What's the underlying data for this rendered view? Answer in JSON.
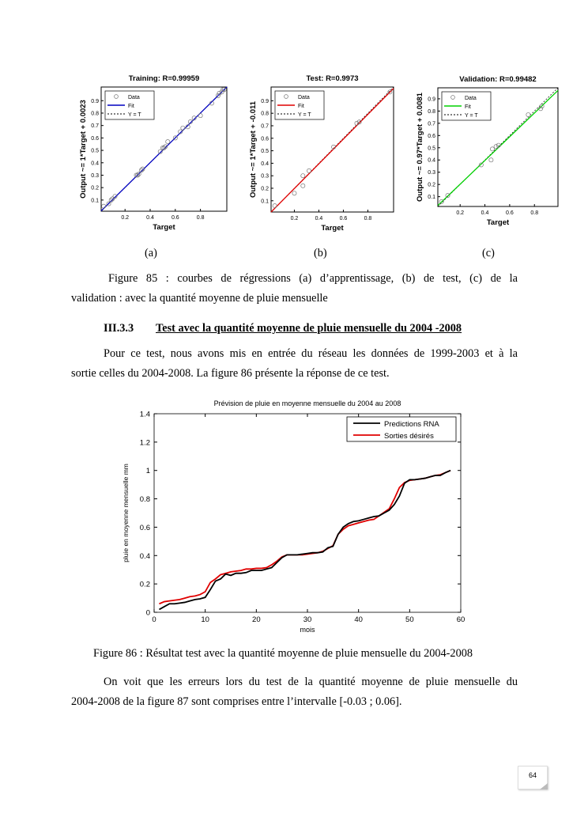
{
  "captions": {
    "a": "(a)",
    "b": "(b)",
    "c": "(c)"
  },
  "figure85_caption": {
    "line1": "Figure 85 : courbes de régressions (a) d’apprentissage, (b) de  test, (c) de la",
    "line2": "validation : avec la quantité moyenne de pluie mensuelle"
  },
  "section": {
    "number": "III.3.3",
    "title": "Test avec la quantité moyenne de pluie mensuelle du 2004 -2008"
  },
  "paragraph1": {
    "line1": "Pour ce test, nous avons mis en entrée du réseau les données de 1999-2003 et à la",
    "line2": "sortie celles du 2004-2008. La figure 86 présente la réponse de ce test."
  },
  "figure86_caption": "Figure 86 : Résultat test avec  la quantité moyenne de pluie mensuelle du 2004-2008",
  "paragraph2": {
    "line1": "On voit que les erreurs lors du test de la quantité moyenne de pluie mensuelle du",
    "line2": "2004-2008 de la figure 87 sont comprises entre l’intervalle [-0.03 ; 0.06]."
  },
  "page_number": "64",
  "chart_data": [
    {
      "type": "scatter",
      "title": "Training: R=0.99959",
      "xlabel": "Target",
      "ylabel": "Output ~= 1*Target + 0.0023",
      "xlim": [
        0.01,
        1.01
      ],
      "ylim": [
        0.01,
        1.01
      ],
      "xticks": [
        "0.2",
        "0.4",
        "0.6",
        "0.8"
      ],
      "yticks": [
        "0.1",
        "0.2",
        "0.3",
        "0.4",
        "0.5",
        "0.6",
        "0.7",
        "0.8",
        "0.9"
      ],
      "fit": {
        "slope": 1,
        "intercept": 0.0023
      },
      "color": "#0000c0",
      "legend": [
        "Data",
        "Fit",
        "Y = T"
      ],
      "points": [
        [
          0.03,
          0.05
        ],
        [
          0.07,
          0.07
        ],
        [
          0.09,
          0.1
        ],
        [
          0.1,
          0.11
        ],
        [
          0.12,
          0.13
        ],
        [
          0.29,
          0.3
        ],
        [
          0.3,
          0.3
        ],
        [
          0.31,
          0.31
        ],
        [
          0.33,
          0.34
        ],
        [
          0.34,
          0.35
        ],
        [
          0.48,
          0.49
        ],
        [
          0.5,
          0.52
        ],
        [
          0.51,
          0.52
        ],
        [
          0.52,
          0.53
        ],
        [
          0.54,
          0.57
        ],
        [
          0.6,
          0.6
        ],
        [
          0.64,
          0.65
        ],
        [
          0.66,
          0.68
        ],
        [
          0.7,
          0.69
        ],
        [
          0.72,
          0.73
        ],
        [
          0.75,
          0.76
        ],
        [
          0.8,
          0.78
        ],
        [
          0.89,
          0.88
        ],
        [
          0.94,
          0.94
        ],
        [
          0.95,
          0.96
        ],
        [
          0.97,
          0.97
        ],
        [
          0.98,
          0.99
        ],
        [
          0.99,
          0.99
        ]
      ]
    },
    {
      "type": "scatter",
      "title": "Test: R=0.9973",
      "xlabel": "Target",
      "ylabel": "Output ~= 1*Target + -0.011",
      "xlim": [
        0.01,
        1.01
      ],
      "ylim": [
        0.01,
        1.01
      ],
      "xticks": [
        "0.2",
        "0.4",
        "0.6",
        "0.8"
      ],
      "yticks": [
        "0.1",
        "0.2",
        "0.3",
        "0.4",
        "0.5",
        "0.6",
        "0.7",
        "0.8",
        "0.9"
      ],
      "fit": {
        "slope": 1,
        "intercept": -0.011
      },
      "color": "#e00000",
      "legend": [
        "Data",
        "Fit",
        "Y = T"
      ],
      "points": [
        [
          0.04,
          0.06
        ],
        [
          0.2,
          0.16
        ],
        [
          0.27,
          0.3
        ],
        [
          0.27,
          0.22
        ],
        [
          0.32,
          0.34
        ],
        [
          0.52,
          0.53
        ],
        [
          0.71,
          0.72
        ],
        [
          0.73,
          0.73
        ],
        [
          0.98,
          0.97
        ]
      ]
    },
    {
      "type": "scatter",
      "title": "Validation: R=0.99482",
      "xlabel": "Target",
      "ylabel": "Output ~= 0.97*Target + 0.0081",
      "xlim": [
        0.02,
        0.99
      ],
      "ylim": [
        0.02,
        0.99
      ],
      "xticks": [
        "0.2",
        "0.4",
        "0.6",
        "0.8"
      ],
      "yticks": [
        "0.1",
        "0.2",
        "0.3",
        "0.4",
        "0.5",
        "0.6",
        "0.7",
        "0.8",
        "0.9"
      ],
      "fit": {
        "slope": 0.97,
        "intercept": 0.0081
      },
      "color": "#00d000",
      "legend": [
        "Data",
        "Fit",
        "Y = T"
      ],
      "points": [
        [
          0.05,
          0.06
        ],
        [
          0.1,
          0.11
        ],
        [
          0.37,
          0.36
        ],
        [
          0.45,
          0.4
        ],
        [
          0.46,
          0.49
        ],
        [
          0.49,
          0.51
        ],
        [
          0.51,
          0.52
        ],
        [
          0.75,
          0.77
        ],
        [
          0.85,
          0.82
        ],
        [
          0.86,
          0.84
        ]
      ]
    },
    {
      "type": "line",
      "title": "Prévision de pluie en moyenne mensuelle du 2004 au 2008",
      "xlabel": "mois",
      "ylabel": "pluie en moyenne mensuelle mm",
      "xlim": [
        0,
        60
      ],
      "ylim": [
        0,
        1.4
      ],
      "xticks": [
        "0",
        "10",
        "20",
        "30",
        "40",
        "50",
        "60"
      ],
      "yticks": [
        "0",
        "0.2",
        "0.4",
        "0.6",
        "0.8",
        "1",
        "1.2",
        "1.4"
      ],
      "legend_position": "top-right",
      "series": [
        {
          "name": "Predictions RNA",
          "color": "#000000",
          "values": [
            0.02,
            0.04,
            0.06,
            0.06,
            0.065,
            0.07,
            0.08,
            0.09,
            0.095,
            0.105,
            0.16,
            0.22,
            0.235,
            0.27,
            0.26,
            0.275,
            0.275,
            0.28,
            0.295,
            0.295,
            0.295,
            0.305,
            0.315,
            0.35,
            0.385,
            0.405,
            0.405,
            0.405,
            0.41,
            0.415,
            0.42,
            0.42,
            0.425,
            0.455,
            0.465,
            0.55,
            0.6,
            0.625,
            0.64,
            0.645,
            0.655,
            0.665,
            0.675,
            0.68,
            0.7,
            0.72,
            0.76,
            0.82,
            0.91,
            0.935,
            0.935,
            0.94,
            0.945,
            0.955,
            0.965,
            0.965,
            0.985,
            1.0
          ]
        },
        {
          "name": "Sorties désirés",
          "color": "#e00000",
          "values": [
            0.06,
            0.075,
            0.08,
            0.085,
            0.09,
            0.1,
            0.11,
            0.115,
            0.125,
            0.145,
            0.21,
            0.235,
            0.265,
            0.275,
            0.285,
            0.29,
            0.295,
            0.305,
            0.305,
            0.31,
            0.31,
            0.315,
            0.335,
            0.36,
            0.39,
            0.405,
            0.405,
            0.405,
            0.405,
            0.41,
            0.415,
            0.42,
            0.43,
            0.45,
            0.47,
            0.55,
            0.585,
            0.61,
            0.62,
            0.63,
            0.64,
            0.65,
            0.655,
            0.68,
            0.705,
            0.73,
            0.8,
            0.88,
            0.915,
            0.93,
            0.935,
            0.94,
            0.945,
            0.955,
            0.965,
            0.97,
            0.985,
            1.0
          ]
        }
      ]
    }
  ]
}
